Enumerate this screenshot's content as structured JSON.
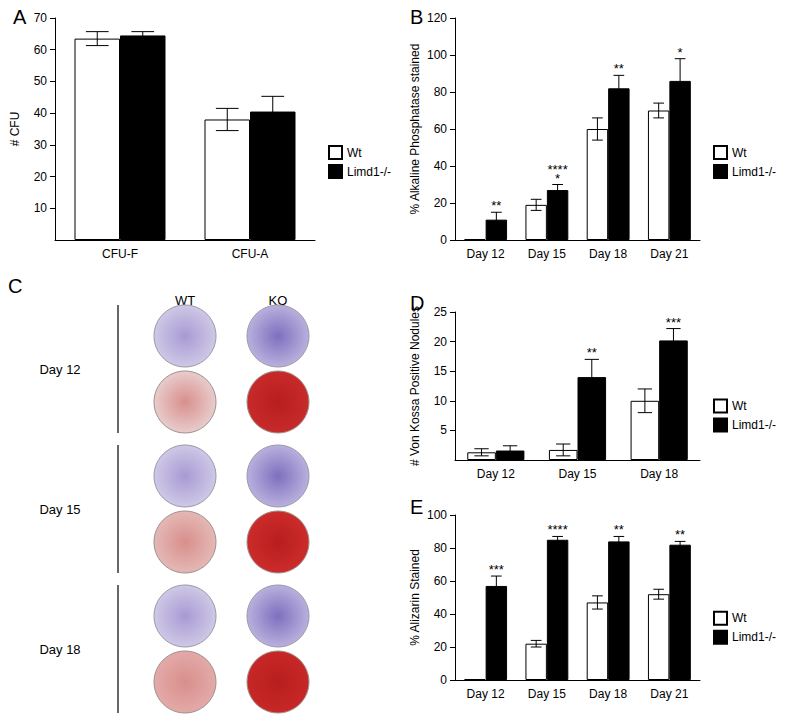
{
  "chart_data": [
    {
      "type": "bar",
      "title": "A",
      "y_label": "# CFU",
      "categories": [
        "CFU-F",
        "CFU-A"
      ],
      "series": [
        {
          "name": "Wt",
          "color": "#ffffff",
          "values": [
            63.5,
            38
          ],
          "errors": [
            2.2,
            3.5
          ]
        },
        {
          "name": "Limd1-/-",
          "color": "#000000",
          "values": [
            64.5,
            40.5
          ],
          "errors": [
            1.2,
            4.8
          ]
        }
      ],
      "ylim": [
        0,
        70
      ],
      "yticks": [
        10,
        20,
        30,
        40,
        50,
        60,
        70
      ],
      "grid": false,
      "legend": "right"
    },
    {
      "type": "bar",
      "title": "B",
      "y_label": "% Alkaline Phosphatase stained",
      "categories": [
        "Day 12",
        "Day 15",
        "Day 18",
        "Day 21"
      ],
      "series": [
        {
          "name": "Wt",
          "color": "#ffffff",
          "values": [
            0.5,
            19,
            60,
            70
          ],
          "errors": [
            0,
            3,
            6,
            4
          ]
        },
        {
          "name": "Limd1-/-",
          "color": "#000000",
          "values": [
            11,
            27,
            82,
            86
          ],
          "errors": [
            4,
            3,
            7,
            12
          ],
          "annotations": [
            "**",
            "****\n*",
            "**",
            "*"
          ]
        }
      ],
      "ylim": [
        0,
        120
      ],
      "yticks": [
        0,
        20,
        40,
        60,
        80,
        100,
        120
      ],
      "grid": false,
      "legend": "right"
    },
    {
      "type": "bar",
      "title": "D",
      "y_label": "# Von Kossa Positive Nodules",
      "categories": [
        "Day 12",
        "Day 15",
        "Day 18"
      ],
      "series": [
        {
          "name": "Wt",
          "color": "#ffffff",
          "values": [
            1.3,
            1.7,
            10
          ],
          "errors": [
            0.6,
            1,
            2
          ]
        },
        {
          "name": "Limd1-/-",
          "color": "#000000",
          "values": [
            1.6,
            14,
            20.2
          ],
          "errors": [
            0.8,
            3,
            2
          ],
          "annotations": [
            null,
            "**",
            "***"
          ]
        }
      ],
      "ylim": [
        0,
        25
      ],
      "yticks": [
        5,
        10,
        15,
        20,
        25
      ],
      "grid": false,
      "legend": "right"
    },
    {
      "type": "bar",
      "title": "E",
      "y_label": "% Alizarin Stained",
      "categories": [
        "Day 12",
        "Day 15",
        "Day 18",
        "Day 21"
      ],
      "series": [
        {
          "name": "Wt",
          "color": "#ffffff",
          "values": [
            0.5,
            22,
            47,
            52
          ],
          "errors": [
            0,
            2,
            4,
            3
          ]
        },
        {
          "name": "Limd1-/-",
          "color": "#000000",
          "values": [
            57,
            85,
            84,
            82
          ],
          "errors": [
            6,
            2,
            3,
            2
          ],
          "annotations": [
            "***",
            "****",
            "**",
            "**"
          ]
        }
      ],
      "ylim": [
        0,
        100
      ],
      "yticks": [
        0,
        20,
        40,
        60,
        80,
        100
      ],
      "grid": false,
      "legend": "right"
    }
  ],
  "image_panel": {
    "title": "C",
    "columns": [
      "WT",
      "KO"
    ],
    "rows": [
      "Day 12",
      "Day 15",
      "Day 18"
    ]
  }
}
